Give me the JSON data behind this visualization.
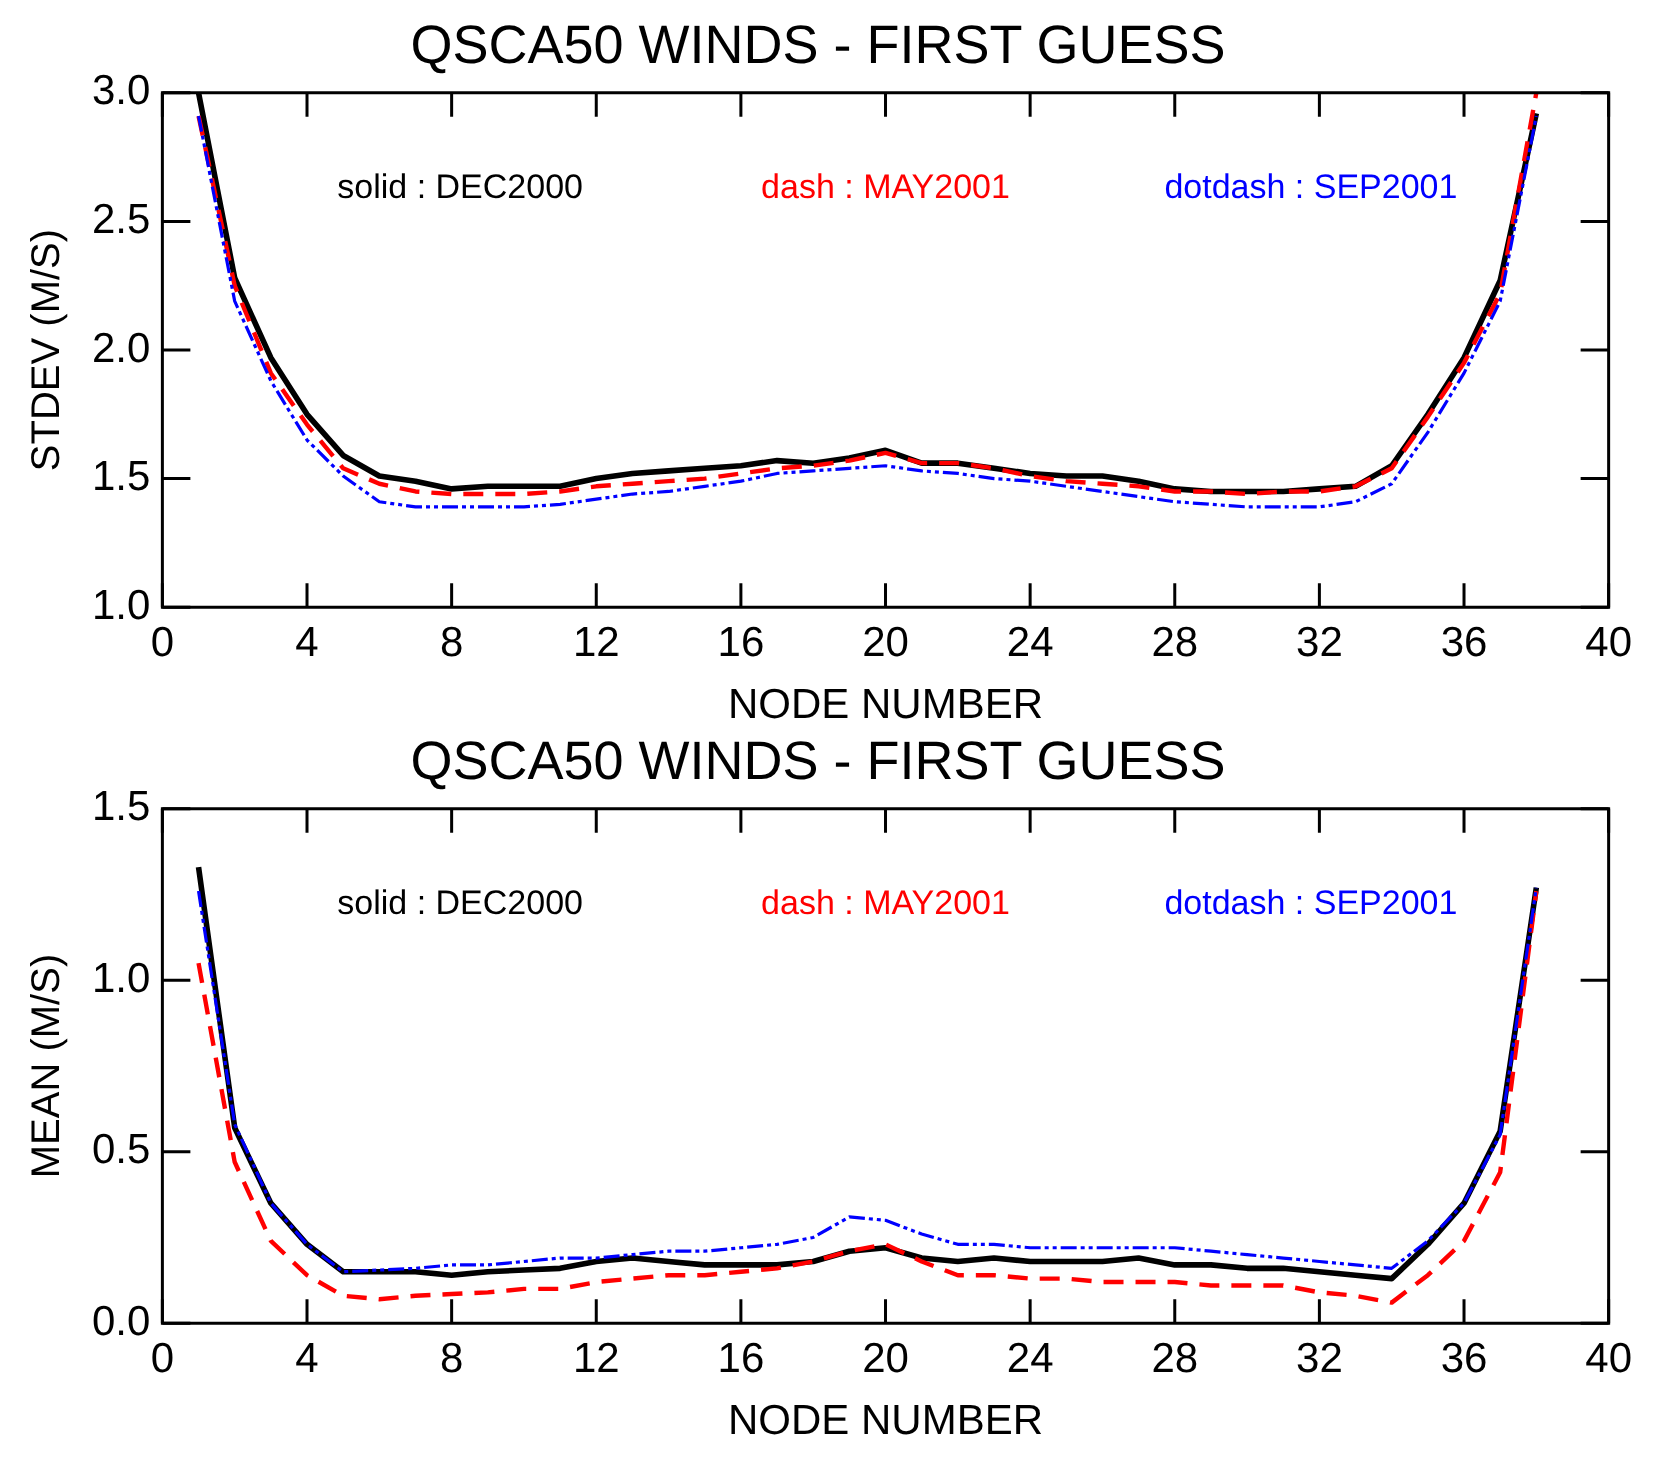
{
  "chart_data": [
    {
      "type": "line",
      "title": "QSCA50 WINDS - FIRST GUESS",
      "xlabel": "NODE NUMBER",
      "ylabel": "STDEV (M/S)",
      "x": [
        1,
        2,
        3,
        4,
        5,
        6,
        7,
        8,
        9,
        10,
        11,
        12,
        13,
        14,
        15,
        16,
        17,
        18,
        19,
        20,
        21,
        22,
        23,
        24,
        25,
        26,
        27,
        28,
        29,
        30,
        31,
        32,
        33,
        34,
        35,
        36,
        37,
        38
      ],
      "series": [
        {
          "name": "solid : DEC2000",
          "color": "#000000",
          "line_style": "solid",
          "values": [
            3.0,
            2.28,
            1.97,
            1.75,
            1.59,
            1.51,
            1.49,
            1.46,
            1.47,
            1.47,
            1.47,
            1.5,
            1.52,
            1.53,
            1.54,
            1.55,
            1.57,
            1.56,
            1.58,
            1.61,
            1.56,
            1.56,
            1.54,
            1.52,
            1.51,
            1.51,
            1.49,
            1.46,
            1.45,
            1.45,
            1.45,
            1.46,
            1.47,
            1.55,
            1.75,
            1.97,
            2.27,
            2.92
          ]
        },
        {
          "name": "dash : MAY2001",
          "color": "#ff0000",
          "line_style": "dashed",
          "values": [
            2.91,
            2.25,
            1.91,
            1.71,
            1.54,
            1.48,
            1.45,
            1.44,
            1.44,
            1.44,
            1.45,
            1.47,
            1.48,
            1.49,
            1.5,
            1.52,
            1.54,
            1.55,
            1.57,
            1.6,
            1.56,
            1.56,
            1.54,
            1.51,
            1.49,
            1.48,
            1.47,
            1.45,
            1.45,
            1.44,
            1.45,
            1.45,
            1.47,
            1.54,
            1.74,
            1.95,
            2.22,
            3.0
          ]
        },
        {
          "name": "dotdash : SEP2001",
          "color": "#0000ff",
          "line_style": "dashdot",
          "values": [
            2.91,
            2.19,
            1.88,
            1.65,
            1.51,
            1.41,
            1.39,
            1.39,
            1.39,
            1.39,
            1.4,
            1.42,
            1.44,
            1.45,
            1.47,
            1.49,
            1.52,
            1.53,
            1.54,
            1.55,
            1.53,
            1.52,
            1.5,
            1.49,
            1.47,
            1.45,
            1.43,
            1.41,
            1.4,
            1.39,
            1.39,
            1.39,
            1.41,
            1.48,
            1.68,
            1.91,
            2.19,
            2.91
          ]
        }
      ],
      "xlim": [
        0,
        40
      ],
      "xticks": [
        0,
        4,
        8,
        12,
        16,
        20,
        24,
        28,
        32,
        36,
        40
      ],
      "ylim": [
        1.0,
        3.0
      ],
      "yticks": [
        {
          "value": 1,
          "label": "1.0"
        },
        {
          "value": 1.5,
          "label": "1.5"
        },
        {
          "value": 2,
          "label": "2.0"
        },
        {
          "value": 2.5,
          "label": "2.5"
        },
        {
          "value": 3,
          "label": "3.0"
        }
      ],
      "legend": "top",
      "grid": false
    },
    {
      "type": "line",
      "title": "QSCA50 WINDS - FIRST GUESS",
      "xlabel": "NODE NUMBER",
      "ylabel": "MEAN (M/S)",
      "x": [
        1,
        2,
        3,
        4,
        5,
        6,
        7,
        8,
        9,
        10,
        11,
        12,
        13,
        14,
        15,
        16,
        17,
        18,
        19,
        20,
        21,
        22,
        23,
        24,
        25,
        26,
        27,
        28,
        29,
        30,
        31,
        32,
        33,
        34,
        35,
        36,
        37,
        38
      ],
      "series": [
        {
          "name": "solid : DEC2000",
          "color": "#000000",
          "line_style": "solid",
          "values": [
            1.33,
            0.57,
            0.35,
            0.23,
            0.15,
            0.15,
            0.15,
            0.14,
            0.15,
            0.155,
            0.16,
            0.18,
            0.19,
            0.18,
            0.17,
            0.17,
            0.17,
            0.18,
            0.21,
            0.22,
            0.19,
            0.18,
            0.19,
            0.18,
            0.18,
            0.18,
            0.19,
            0.17,
            0.17,
            0.16,
            0.16,
            0.15,
            0.14,
            0.13,
            0.23,
            0.35,
            0.56,
            1.27
          ]
        },
        {
          "name": "dash : MAY2001",
          "color": "#ff0000",
          "line_style": "dashed",
          "values": [
            1.05,
            0.47,
            0.24,
            0.14,
            0.08,
            0.07,
            0.08,
            0.085,
            0.09,
            0.1,
            0.1,
            0.12,
            0.13,
            0.14,
            0.14,
            0.15,
            0.16,
            0.18,
            0.21,
            0.23,
            0.18,
            0.14,
            0.14,
            0.13,
            0.13,
            0.12,
            0.12,
            0.12,
            0.11,
            0.11,
            0.11,
            0.09,
            0.08,
            0.06,
            0.14,
            0.24,
            0.44,
            1.26
          ]
        },
        {
          "name": "dotdash : SEP2001",
          "color": "#0000ff",
          "line_style": "dashdot",
          "values": [
            1.26,
            0.58,
            0.35,
            0.23,
            0.15,
            0.155,
            0.16,
            0.17,
            0.17,
            0.18,
            0.19,
            0.19,
            0.2,
            0.21,
            0.21,
            0.22,
            0.23,
            0.25,
            0.31,
            0.3,
            0.26,
            0.23,
            0.23,
            0.22,
            0.22,
            0.22,
            0.22,
            0.22,
            0.21,
            0.2,
            0.19,
            0.18,
            0.17,
            0.16,
            0.24,
            0.35,
            0.55,
            1.27
          ]
        }
      ],
      "xlim": [
        0,
        40
      ],
      "xticks": [
        0,
        4,
        8,
        12,
        16,
        20,
        24,
        28,
        32,
        36,
        40
      ],
      "ylim": [
        0,
        1.5
      ],
      "yticks": [
        {
          "value": 0,
          "label": "0.0"
        },
        {
          "value": 0.5,
          "label": "0.5"
        },
        {
          "value": 1,
          "label": "1.0"
        },
        {
          "value": 1.5,
          "label": "1.5"
        }
      ],
      "legend": "top",
      "grid": false
    }
  ]
}
